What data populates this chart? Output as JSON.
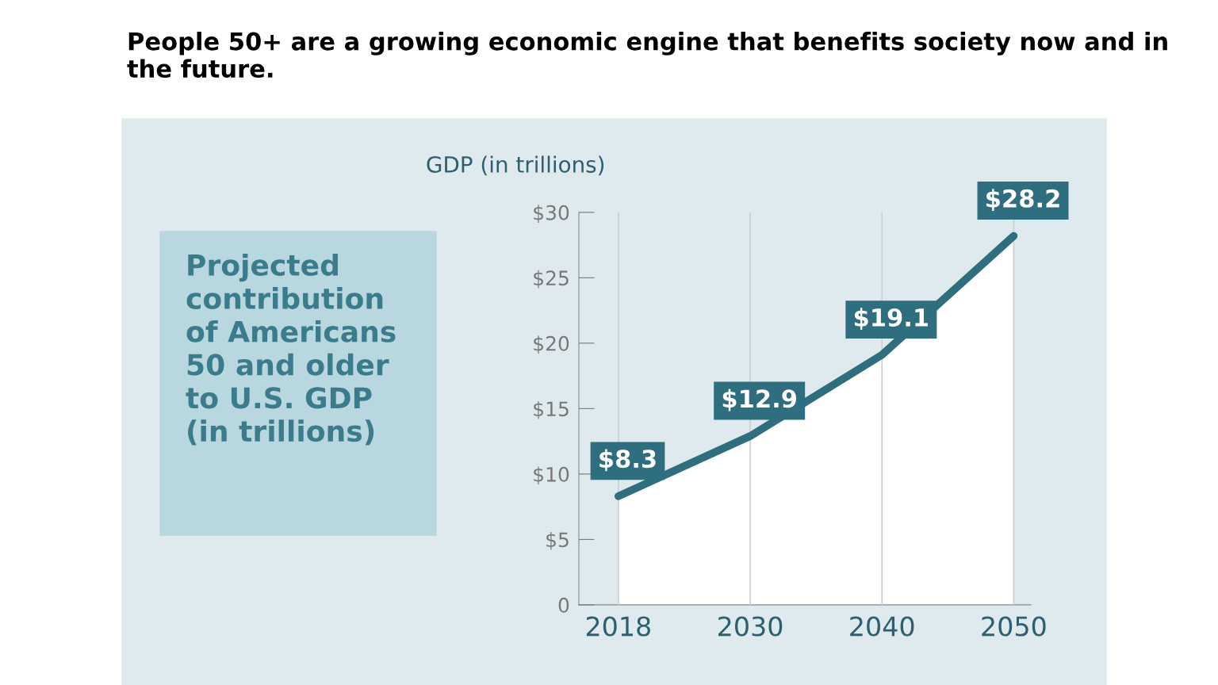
{
  "chart_data": {
    "type": "area",
    "title": "People 50+ are a growing economic engine that benefits society now and in the future.",
    "ylabel": "GDP (in trillions)",
    "annotations": [
      "Projected\ncontribution\nof Americans\n50 and older\nto U.S. GDP\n(in trillions)"
    ],
    "categories": [
      "2018",
      "2030",
      "2040",
      "2050"
    ],
    "series": [
      {
        "color": "#2e6e7e",
        "values": [
          8.3,
          12.9,
          19.1,
          28.2
        ]
      }
    ],
    "value_labels": [
      "$8.3",
      "$12.9",
      "$19.1",
      "$28.2"
    ],
    "ylim": [
      0,
      30
    ],
    "yticks": [
      0,
      {
        "value": 5,
        "label": "$5"
      },
      {
        "value": 10,
        "label": "$10"
      },
      {
        "value": 15,
        "label": "$15"
      },
      {
        "value": 20,
        "label": "$20"
      },
      {
        "value": 25,
        "label": "$25"
      },
      {
        "value": 30,
        "label": "$30"
      }
    ],
    "grid": "x",
    "legend": false
  }
}
